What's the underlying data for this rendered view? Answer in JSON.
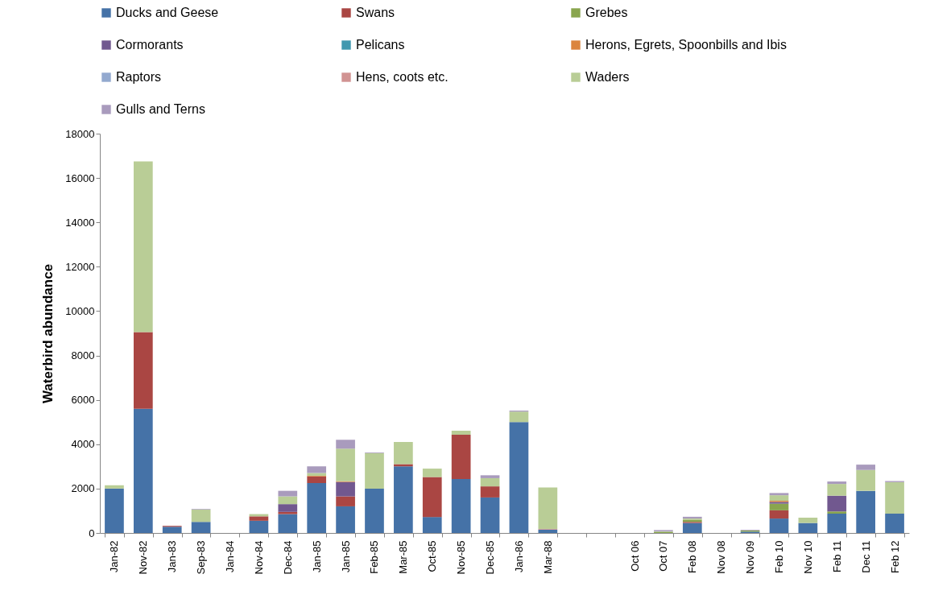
{
  "chart_data": {
    "type": "bar",
    "stacked": true,
    "ylabel": "Waterbird abundance",
    "legend": "top",
    "grid": false,
    "categories": [
      "Jan-82",
      "Nov-82",
      "Jan-83",
      "Sep-83",
      "Jan-84",
      "Nov-84",
      "Dec-84",
      "Jan-85",
      "Jan-85",
      "Feb-85",
      "Mar-85",
      "Oct-85",
      "Nov-85",
      "Dec-85",
      "Jan-86",
      "Mar-88",
      null,
      null,
      "Oct 06",
      "Oct 07",
      "Feb 08",
      "Nov 08",
      "Nov 09",
      "Feb 10",
      "Nov 10",
      "Feb 11",
      "Dec 11",
      "Feb 12"
    ],
    "ylim": [
      0,
      18000
    ],
    "yticks": [
      0,
      2000,
      4000,
      6000,
      8000,
      10000,
      12000,
      14000,
      16000,
      18000
    ],
    "series": [
      {
        "name": "Ducks and Geese",
        "color": "#4572a7",
        "values": [
          2000,
          5600,
          280,
          500,
          0,
          550,
          850,
          2250,
          1200,
          2000,
          3000,
          720,
          2430,
          1600,
          5000,
          150,
          0,
          0,
          0,
          0,
          450,
          0,
          60,
          650,
          450,
          870,
          1900,
          870
        ]
      },
      {
        "name": "Swans",
        "color": "#aa4643",
        "values": [
          0,
          3450,
          40,
          0,
          0,
          200,
          100,
          300,
          450,
          0,
          100,
          1800,
          2000,
          500,
          0,
          0,
          0,
          0,
          0,
          0,
          50,
          0,
          0,
          370,
          0,
          0,
          0,
          0
        ]
      },
      {
        "name": "Grebes",
        "color": "#89a54e",
        "values": [
          0,
          0,
          0,
          0,
          0,
          0,
          0,
          0,
          0,
          0,
          0,
          0,
          0,
          0,
          0,
          0,
          0,
          0,
          0,
          40,
          100,
          0,
          50,
          300,
          0,
          100,
          0,
          0
        ]
      },
      {
        "name": "Cormorants",
        "color": "#71588f",
        "values": [
          0,
          0,
          0,
          0,
          0,
          0,
          350,
          0,
          650,
          0,
          0,
          0,
          0,
          0,
          0,
          0,
          0,
          0,
          0,
          0,
          0,
          0,
          0,
          80,
          0,
          710,
          0,
          0
        ]
      },
      {
        "name": "Pelicans",
        "color": "#4198af",
        "values": [
          0,
          0,
          0,
          0,
          0,
          0,
          0,
          0,
          0,
          0,
          0,
          0,
          0,
          0,
          0,
          0,
          0,
          0,
          0,
          0,
          0,
          0,
          0,
          0,
          0,
          0,
          0,
          0
        ]
      },
      {
        "name": "Herons, Egrets, Spoonbills and Ibis",
        "color": "#db843d",
        "values": [
          0,
          0,
          0,
          0,
          0,
          0,
          0,
          30,
          30,
          0,
          0,
          0,
          0,
          0,
          0,
          0,
          0,
          0,
          0,
          0,
          0,
          0,
          0,
          50,
          0,
          0,
          0,
          0
        ]
      },
      {
        "name": "Raptors",
        "color": "#93a9cf",
        "values": [
          0,
          0,
          0,
          0,
          0,
          0,
          0,
          0,
          0,
          0,
          0,
          0,
          0,
          0,
          0,
          0,
          0,
          0,
          0,
          0,
          0,
          0,
          0,
          0,
          0,
          0,
          0,
          0
        ]
      },
      {
        "name": "Hens, coots etc.",
        "color": "#d19392",
        "values": [
          0,
          0,
          0,
          0,
          0,
          0,
          0,
          0,
          0,
          0,
          0,
          0,
          0,
          0,
          0,
          30,
          0,
          0,
          0,
          0,
          0,
          0,
          0,
          0,
          0,
          0,
          0,
          0
        ]
      },
      {
        "name": "Waders",
        "color": "#b9cd96",
        "values": [
          150,
          7700,
          0,
          550,
          0,
          100,
          350,
          120,
          1470,
          1600,
          1000,
          380,
          180,
          370,
          470,
          1870,
          0,
          0,
          0,
          30,
          50,
          0,
          0,
          250,
          240,
          530,
          940,
          1420
        ]
      },
      {
        "name": "Gulls and Terns",
        "color": "#a99bbd",
        "values": [
          0,
          0,
          0,
          30,
          0,
          0,
          250,
          300,
          400,
          30,
          0,
          0,
          0,
          130,
          50,
          0,
          0,
          0,
          0,
          60,
          80,
          0,
          30,
          100,
          0,
          110,
          240,
          50
        ]
      }
    ]
  }
}
